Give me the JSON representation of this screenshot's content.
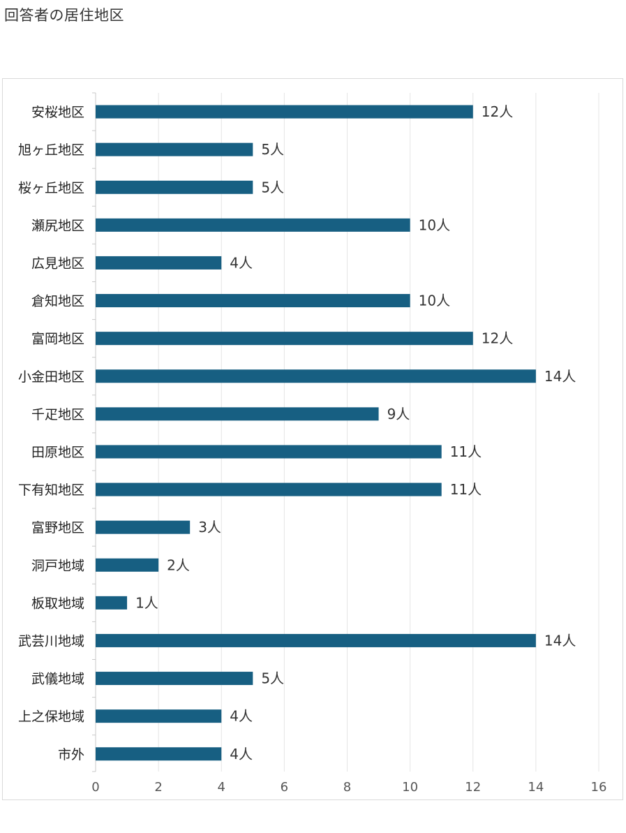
{
  "heading": "回答者の居住地区",
  "colors": {
    "bar": "#175f82",
    "grid": "#e4e4e4",
    "axis": "#c8c8c8"
  },
  "chart_data": {
    "type": "bar",
    "orientation": "horizontal",
    "title": "回答者の居住地区",
    "categories": [
      "安桜地区",
      "旭ヶ丘地区",
      "桜ヶ丘地区",
      "瀬尻地区",
      "広見地区",
      "倉知地区",
      "富岡地区",
      "小金田地区",
      "千疋地区",
      "田原地区",
      "下有知地区",
      "富野地区",
      "洞戸地域",
      "板取地域",
      "武芸川地域",
      "武儀地域",
      "上之保地域",
      "市外"
    ],
    "values": [
      12,
      5,
      5,
      10,
      4,
      10,
      12,
      14,
      9,
      11,
      11,
      3,
      2,
      1,
      14,
      5,
      4,
      4
    ],
    "value_suffix": "人",
    "xlim": [
      0,
      16
    ],
    "xticks": [
      0,
      2,
      4,
      6,
      8,
      10,
      12,
      14,
      16
    ],
    "grid": true,
    "legend": "none"
  }
}
